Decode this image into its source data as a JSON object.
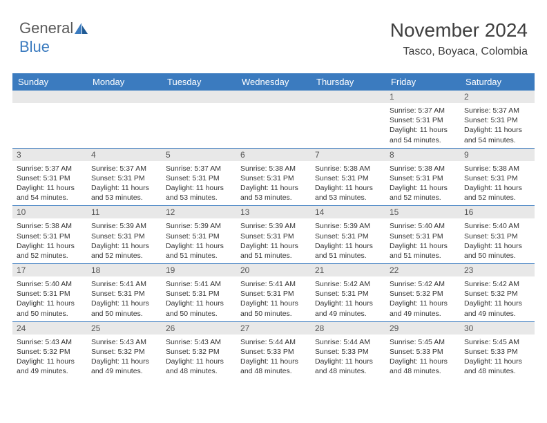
{
  "logo": {
    "part1": "General",
    "part2": "Blue"
  },
  "title": "November 2024",
  "location": "Tasco, Boyaca, Colombia",
  "colors": {
    "header_bg": "#3b7bbf",
    "header_text": "#ffffff",
    "daynum_bg": "#e8e8e8",
    "border": "#3b7bbf",
    "text": "#333333",
    "title_color": "#404040"
  },
  "weekdays": [
    "Sunday",
    "Monday",
    "Tuesday",
    "Wednesday",
    "Thursday",
    "Friday",
    "Saturday"
  ],
  "weeks": [
    [
      {
        "n": "",
        "sr": "",
        "ss": "",
        "dl": ""
      },
      {
        "n": "",
        "sr": "",
        "ss": "",
        "dl": ""
      },
      {
        "n": "",
        "sr": "",
        "ss": "",
        "dl": ""
      },
      {
        "n": "",
        "sr": "",
        "ss": "",
        "dl": ""
      },
      {
        "n": "",
        "sr": "",
        "ss": "",
        "dl": ""
      },
      {
        "n": "1",
        "sr": "Sunrise: 5:37 AM",
        "ss": "Sunset: 5:31 PM",
        "dl": "Daylight: 11 hours and 54 minutes."
      },
      {
        "n": "2",
        "sr": "Sunrise: 5:37 AM",
        "ss": "Sunset: 5:31 PM",
        "dl": "Daylight: 11 hours and 54 minutes."
      }
    ],
    [
      {
        "n": "3",
        "sr": "Sunrise: 5:37 AM",
        "ss": "Sunset: 5:31 PM",
        "dl": "Daylight: 11 hours and 54 minutes."
      },
      {
        "n": "4",
        "sr": "Sunrise: 5:37 AM",
        "ss": "Sunset: 5:31 PM",
        "dl": "Daylight: 11 hours and 53 minutes."
      },
      {
        "n": "5",
        "sr": "Sunrise: 5:37 AM",
        "ss": "Sunset: 5:31 PM",
        "dl": "Daylight: 11 hours and 53 minutes."
      },
      {
        "n": "6",
        "sr": "Sunrise: 5:38 AM",
        "ss": "Sunset: 5:31 PM",
        "dl": "Daylight: 11 hours and 53 minutes."
      },
      {
        "n": "7",
        "sr": "Sunrise: 5:38 AM",
        "ss": "Sunset: 5:31 PM",
        "dl": "Daylight: 11 hours and 53 minutes."
      },
      {
        "n": "8",
        "sr": "Sunrise: 5:38 AM",
        "ss": "Sunset: 5:31 PM",
        "dl": "Daylight: 11 hours and 52 minutes."
      },
      {
        "n": "9",
        "sr": "Sunrise: 5:38 AM",
        "ss": "Sunset: 5:31 PM",
        "dl": "Daylight: 11 hours and 52 minutes."
      }
    ],
    [
      {
        "n": "10",
        "sr": "Sunrise: 5:38 AM",
        "ss": "Sunset: 5:31 PM",
        "dl": "Daylight: 11 hours and 52 minutes."
      },
      {
        "n": "11",
        "sr": "Sunrise: 5:39 AM",
        "ss": "Sunset: 5:31 PM",
        "dl": "Daylight: 11 hours and 52 minutes."
      },
      {
        "n": "12",
        "sr": "Sunrise: 5:39 AM",
        "ss": "Sunset: 5:31 PM",
        "dl": "Daylight: 11 hours and 51 minutes."
      },
      {
        "n": "13",
        "sr": "Sunrise: 5:39 AM",
        "ss": "Sunset: 5:31 PM",
        "dl": "Daylight: 11 hours and 51 minutes."
      },
      {
        "n": "14",
        "sr": "Sunrise: 5:39 AM",
        "ss": "Sunset: 5:31 PM",
        "dl": "Daylight: 11 hours and 51 minutes."
      },
      {
        "n": "15",
        "sr": "Sunrise: 5:40 AM",
        "ss": "Sunset: 5:31 PM",
        "dl": "Daylight: 11 hours and 51 minutes."
      },
      {
        "n": "16",
        "sr": "Sunrise: 5:40 AM",
        "ss": "Sunset: 5:31 PM",
        "dl": "Daylight: 11 hours and 50 minutes."
      }
    ],
    [
      {
        "n": "17",
        "sr": "Sunrise: 5:40 AM",
        "ss": "Sunset: 5:31 PM",
        "dl": "Daylight: 11 hours and 50 minutes."
      },
      {
        "n": "18",
        "sr": "Sunrise: 5:41 AM",
        "ss": "Sunset: 5:31 PM",
        "dl": "Daylight: 11 hours and 50 minutes."
      },
      {
        "n": "19",
        "sr": "Sunrise: 5:41 AM",
        "ss": "Sunset: 5:31 PM",
        "dl": "Daylight: 11 hours and 50 minutes."
      },
      {
        "n": "20",
        "sr": "Sunrise: 5:41 AM",
        "ss": "Sunset: 5:31 PM",
        "dl": "Daylight: 11 hours and 50 minutes."
      },
      {
        "n": "21",
        "sr": "Sunrise: 5:42 AM",
        "ss": "Sunset: 5:31 PM",
        "dl": "Daylight: 11 hours and 49 minutes."
      },
      {
        "n": "22",
        "sr": "Sunrise: 5:42 AM",
        "ss": "Sunset: 5:32 PM",
        "dl": "Daylight: 11 hours and 49 minutes."
      },
      {
        "n": "23",
        "sr": "Sunrise: 5:42 AM",
        "ss": "Sunset: 5:32 PM",
        "dl": "Daylight: 11 hours and 49 minutes."
      }
    ],
    [
      {
        "n": "24",
        "sr": "Sunrise: 5:43 AM",
        "ss": "Sunset: 5:32 PM",
        "dl": "Daylight: 11 hours and 49 minutes."
      },
      {
        "n": "25",
        "sr": "Sunrise: 5:43 AM",
        "ss": "Sunset: 5:32 PM",
        "dl": "Daylight: 11 hours and 49 minutes."
      },
      {
        "n": "26",
        "sr": "Sunrise: 5:43 AM",
        "ss": "Sunset: 5:32 PM",
        "dl": "Daylight: 11 hours and 48 minutes."
      },
      {
        "n": "27",
        "sr": "Sunrise: 5:44 AM",
        "ss": "Sunset: 5:33 PM",
        "dl": "Daylight: 11 hours and 48 minutes."
      },
      {
        "n": "28",
        "sr": "Sunrise: 5:44 AM",
        "ss": "Sunset: 5:33 PM",
        "dl": "Daylight: 11 hours and 48 minutes."
      },
      {
        "n": "29",
        "sr": "Sunrise: 5:45 AM",
        "ss": "Sunset: 5:33 PM",
        "dl": "Daylight: 11 hours and 48 minutes."
      },
      {
        "n": "30",
        "sr": "Sunrise: 5:45 AM",
        "ss": "Sunset: 5:33 PM",
        "dl": "Daylight: 11 hours and 48 minutes."
      }
    ]
  ]
}
